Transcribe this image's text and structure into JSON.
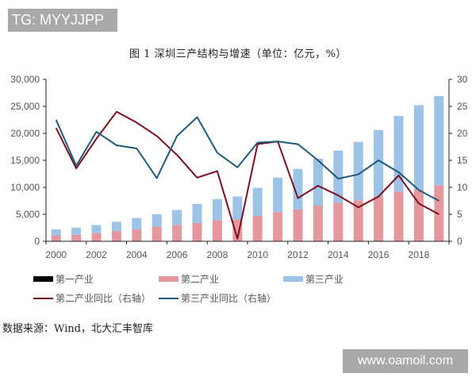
{
  "watermarks": {
    "top": "TG: MYYJJPP",
    "bottom": "www.oamoil.com"
  },
  "title": "图 1 深圳三产结构与增速（单位：亿元，%）",
  "source": "数据来源：Wind，北大汇丰智库",
  "legend": {
    "items": [
      {
        "label": "第一产业",
        "kind": "box",
        "color": "#000000"
      },
      {
        "label": "第二产业",
        "kind": "box",
        "color": "#e4989e"
      },
      {
        "label": "第三产业",
        "kind": "box",
        "color": "#9dc3e6"
      },
      {
        "label": "第二产业同比（右轴）",
        "kind": "line",
        "color": "#7b1020"
      },
      {
        "label": "第三产业同比（右轴）",
        "kind": "line",
        "color": "#1f5a78"
      }
    ]
  },
  "chart_data": {
    "type": "bar",
    "title": "图 1 深圳三产结构与增速（单位：亿元，%）",
    "xlabel": "",
    "ylabel": "亿元",
    "y2label": "%",
    "ylim": [
      0,
      30000
    ],
    "y2lim": [
      0,
      30
    ],
    "y_ticks": [
      "0",
      "5,000",
      "10,000",
      "15,000",
      "20,000",
      "25,000",
      "30,000"
    ],
    "y2_ticks": [
      "0",
      "5",
      "10",
      "15",
      "20",
      "25",
      "30"
    ],
    "x_tick_labels": [
      "2000",
      "2002",
      "2004",
      "2006",
      "2008",
      "2010",
      "2012",
      "2014",
      "2016",
      "2018"
    ],
    "grid": false,
    "legend_position": "bottom",
    "stacked": true,
    "categories": [
      "2000",
      "2001",
      "2002",
      "2003",
      "2004",
      "2005",
      "2006",
      "2007",
      "2008",
      "2009",
      "2010",
      "2011",
      "2012",
      "2013",
      "2014",
      "2015",
      "2016",
      "2017",
      "2018",
      "2019"
    ],
    "series": [
      {
        "name": "第一产业",
        "type": "bar",
        "axis": "left",
        "color": "#000000",
        "values": [
          10,
          10,
          10,
          10,
          10,
          10,
          10,
          10,
          10,
          10,
          10,
          10,
          10,
          10,
          10,
          10,
          10,
          20,
          20,
          20
        ]
      },
      {
        "name": "第二产业",
        "type": "bar",
        "axis": "left",
        "color": "#e4989e",
        "values": [
          1100,
          1200,
          1500,
          1900,
          2200,
          2700,
          3000,
          3400,
          3900,
          4000,
          4700,
          5400,
          5900,
          6600,
          7100,
          7600,
          8300,
          9200,
          9600,
          10400
        ]
      },
      {
        "name": "第三产业",
        "type": "bar",
        "axis": "left",
        "color": "#9dc3e6",
        "values": [
          1100,
          1300,
          1500,
          1700,
          2100,
          2300,
          2800,
          3500,
          3900,
          4300,
          5200,
          6400,
          7500,
          8700,
          9700,
          10800,
          12300,
          14000,
          15600,
          16500
        ]
      },
      {
        "name": "第二产业同比（右轴）",
        "type": "line",
        "axis": "right",
        "color": "#7b1020",
        "values": [
          21,
          13.5,
          19,
          24,
          22,
          19.5,
          16,
          11.8,
          13,
          0.5,
          18,
          18.5,
          8,
          10.3,
          8.5,
          6.3,
          8.3,
          12.2,
          7,
          5
        ]
      },
      {
        "name": "第三产业同比（右轴）",
        "type": "line",
        "axis": "right",
        "color": "#1f5a78",
        "values": [
          22.5,
          14,
          20.3,
          17.8,
          17.2,
          11.7,
          19.5,
          23,
          16.4,
          13.7,
          18.3,
          18.5,
          18,
          15,
          11.6,
          12.4,
          15,
          12.8,
          9.5,
          7.5
        ]
      }
    ]
  }
}
